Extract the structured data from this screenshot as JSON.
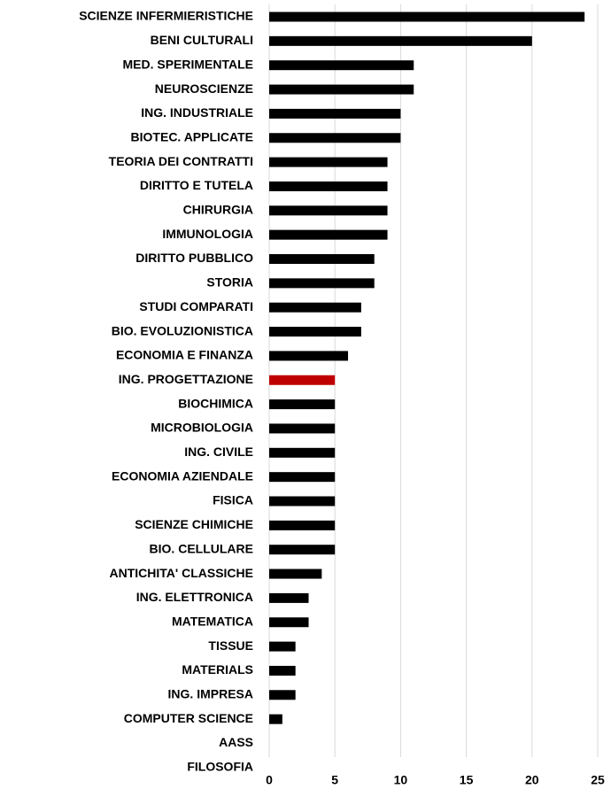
{
  "chart_data": {
    "type": "barh",
    "categories": [
      "SCIENZE INFERMIERISTICHE",
      "BENI CULTURALI",
      "MED. SPERIMENTALE",
      "NEUROSCIENZE",
      "ING. INDUSTRIALE",
      "BIOTEC. APPLICATE",
      "TEORIA DEI CONTRATTI",
      "DIRITTO E TUTELA",
      "CHIRURGIA",
      "IMMUNOLOGIA",
      "DIRITTO PUBBLICO",
      "STORIA",
      "STUDI COMPARATI",
      "BIO. EVOLUZIONISTICA",
      "ECONOMIA E FINANZA",
      "ING. PROGETTAZIONE",
      "BIOCHIMICA",
      "MICROBIOLOGIA",
      "ING. CIVILE",
      "ECONOMIA AZIENDALE",
      "FISICA",
      "SCIENZE CHIMICHE",
      "BIO. CELLULARE",
      "ANTICHITA' CLASSICHE",
      "ING. ELETTRONICA",
      "MATEMATICA",
      "TISSUE",
      "MATERIALS",
      "ING. IMPRESA",
      "COMPUTER SCIENCE",
      "AASS",
      "FILOSOFIA"
    ],
    "values": [
      24,
      20,
      11,
      11,
      10,
      10,
      9,
      9,
      9,
      9,
      8,
      8,
      7,
      7,
      6,
      5,
      5,
      5,
      5,
      5,
      5,
      5,
      5,
      4,
      3,
      3,
      2,
      2,
      2,
      1,
      0,
      0
    ],
    "colors": [
      "#000000",
      "#000000",
      "#000000",
      "#000000",
      "#000000",
      "#000000",
      "#000000",
      "#000000",
      "#000000",
      "#000000",
      "#000000",
      "#000000",
      "#000000",
      "#000000",
      "#000000",
      "#c00000",
      "#000000",
      "#000000",
      "#000000",
      "#000000",
      "#000000",
      "#000000",
      "#000000",
      "#000000",
      "#000000",
      "#000000",
      "#000000",
      "#000000",
      "#000000",
      "#000000",
      "#000000",
      "#000000"
    ],
    "xlim": [
      0,
      25
    ],
    "xticks": [
      0,
      5,
      10,
      15,
      20,
      25
    ],
    "grid": true
  }
}
